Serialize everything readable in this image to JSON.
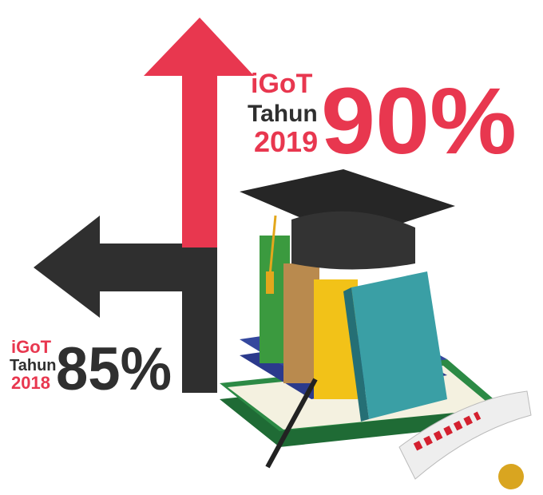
{
  "items": [
    {
      "label": "iGoT",
      "sub": "Tahun",
      "year": "2019",
      "value": "90%"
    },
    {
      "label": "iGoT",
      "sub": "Tahun",
      "year": "2018",
      "value": "85%"
    }
  ]
}
